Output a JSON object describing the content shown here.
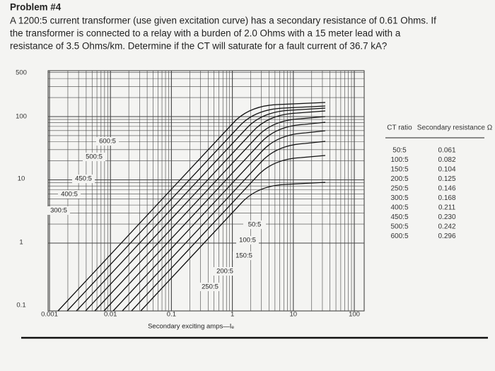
{
  "problem": {
    "title": "Problem #4",
    "lines": [
      "A 1200:5 current transformer (use given excitation curve) has a secondary resistance of 0.61 Ohms. If",
      "the transformer is connected to a relay with a burden of 2.0 Ohms with a 15 meter lead with a",
      "resistance of 3.5 Ohms/km. Determine if the CT will saturate for a fault current of 36.7 kA?"
    ]
  },
  "figure": {
    "y_tick_labels": [
      "500",
      "100",
      "10",
      "1",
      "0.1"
    ],
    "x_tick_labels": [
      "0.001",
      "0.01",
      "0.1",
      "1",
      "10",
      "100"
    ],
    "x_axis_label": "Secondary exciting amps—Iₑ",
    "curve_labels": [
      "600:5",
      "500:5",
      "450:5",
      "400:5",
      "300:5",
      "50:5",
      "100:5",
      "150:5",
      "200:5",
      "250:5"
    ],
    "table": {
      "header": [
        "CT ratio",
        "Secondary resistance Ω"
      ],
      "rows": [
        [
          "50:5",
          "0.061"
        ],
        [
          "100:5",
          "0.082"
        ],
        [
          "150:5",
          "0.104"
        ],
        [
          "200:5",
          "0.125"
        ],
        [
          "250:5",
          "0.146"
        ],
        [
          "300:5",
          "0.168"
        ],
        [
          "400:5",
          "0.211"
        ],
        [
          "450:5",
          "0.230"
        ],
        [
          "500:5",
          "0.242"
        ],
        [
          "600:5",
          "0.296"
        ]
      ]
    }
  }
}
